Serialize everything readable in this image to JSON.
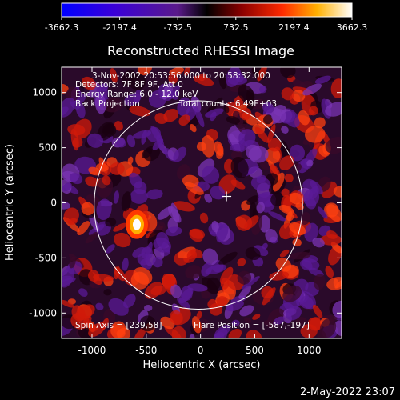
{
  "chart_data": {
    "type": "heatmap",
    "title": "Reconstructed RHESSI Image",
    "xlabel": "Heliocentric X (arcsec)",
    "ylabel": "Heliocentric Y (arcsec)",
    "xlim": [
      -1280,
      1300
    ],
    "ylim": [
      -1230,
      1230
    ],
    "x_ticks": [
      -1000,
      -500,
      0,
      500,
      1000
    ],
    "y_ticks": [
      -1000,
      -500,
      0,
      500,
      1000
    ],
    "colorbar": {
      "min": -3662.3,
      "max": 3662.3,
      "ticks": [
        "-3662.3",
        "-2197.4",
        "-732.5",
        "732.5",
        "2197.4",
        "3662.3"
      ]
    },
    "annotations": {
      "time_range": "3-Nov-2002 20:53:56.000 to 20:58:32.000",
      "detectors": "Detectors: 7F 8F 9F, Att 0",
      "energy": "Energy Range: 6.0 - 12.0 keV",
      "method": "Back Projection",
      "counts": "Total counts: 6.49E+03",
      "spin_axis": "Spin Axis = [239,58]",
      "flare_position": "Flare Position = [-587,-197]"
    },
    "solar_limb": {
      "center": [
        -20,
        -20
      ],
      "radius": 960
    },
    "cross_marker": [
      239,
      58
    ],
    "bright_source": [
      -587,
      -197
    ],
    "footer_date": "2-May-2022 23:07"
  }
}
